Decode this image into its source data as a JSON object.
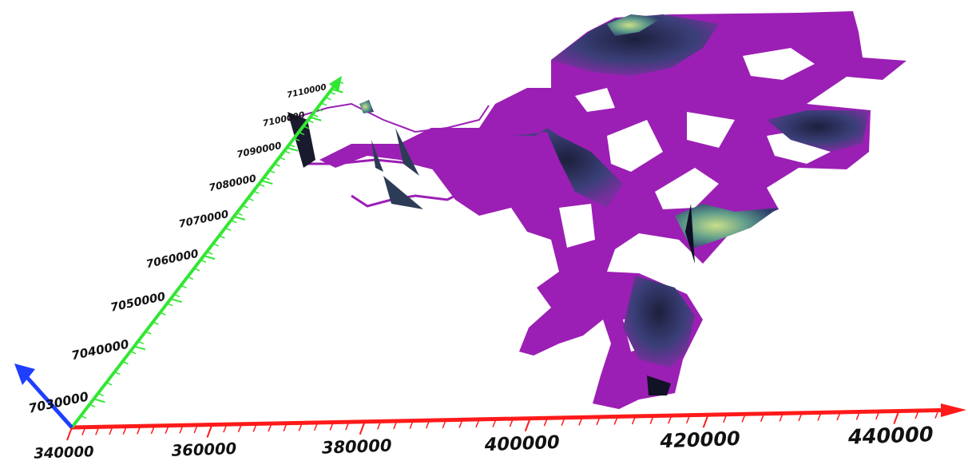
{
  "chart_data": {
    "type": "surface3d",
    "xlim": [
      340000,
      446000
    ],
    "xticks": [
      340000,
      360000,
      380000,
      400000,
      420000,
      440000
    ],
    "ylim": [
      7025000,
      7115000
    ],
    "yticks": [
      7030000,
      7040000,
      7050000,
      7060000,
      7070000,
      7080000,
      7090000,
      7100000,
      7110000
    ],
    "x_axis_color": "#ff1a1a",
    "y_axis_color": "#33e633",
    "z_axis_color": "#1f3fff",
    "surface_color": "#9b1fb4"
  }
}
